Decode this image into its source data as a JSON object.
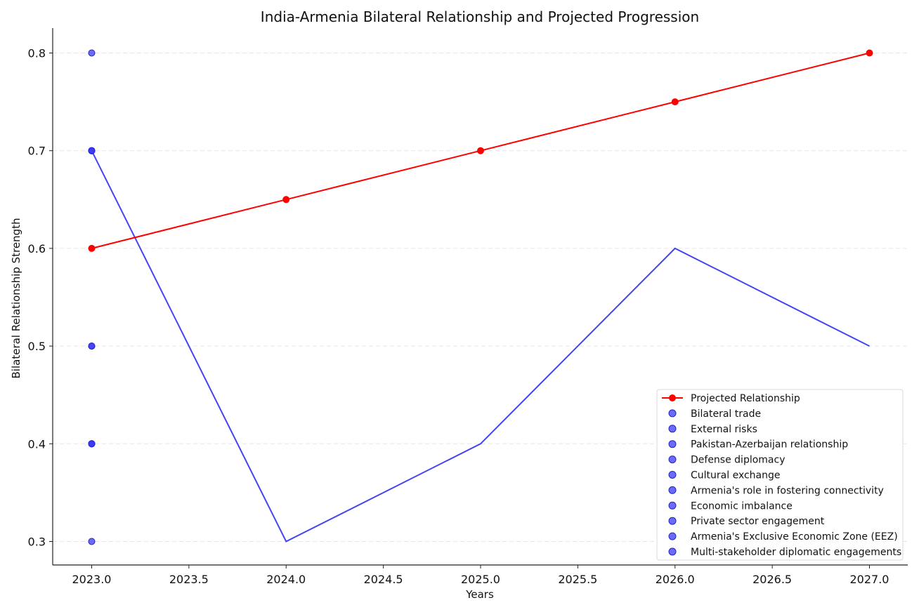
{
  "chart_data": {
    "type": "line",
    "title": "India-Armenia Bilateral Relationship and Projected Progression",
    "xlabel": "Years",
    "ylabel": "Bilateral Relationship Strength",
    "xlim": [
      2022.8,
      2027.2
    ],
    "ylim": [
      0.276,
      0.825
    ],
    "x_ticks": [
      "2023.0",
      "2023.5",
      "2024.0",
      "2024.5",
      "2025.0",
      "2025.5",
      "2026.0",
      "2026.5",
      "2027.0"
    ],
    "y_ticks": [
      "0.3",
      "0.4",
      "0.5",
      "0.6",
      "0.7",
      "0.8"
    ],
    "grid": "horizontal-dashed",
    "legend_position": "lower-right",
    "projected": {
      "name": "Projected Relationship",
      "color": "#ff0000",
      "x": [
        2023,
        2024,
        2025,
        2026,
        2027
      ],
      "y": [
        0.6,
        0.65,
        0.7,
        0.75,
        0.8
      ]
    },
    "unlabeled_line": {
      "color": "#3a3af5",
      "x": [
        2023,
        2024,
        2025,
        2026,
        2027
      ],
      "y": [
        0.7,
        0.3,
        0.4,
        0.6,
        0.5
      ]
    },
    "factor_points": {
      "color": "#3a3af5",
      "names": [
        "Bilateral trade",
        "External risks",
        "Pakistan-Azerbaijan relationship",
        "Defense diplomacy",
        "Cultural exchange",
        "Armenia's role in fostering connectivity",
        "Economic imbalance",
        "Private sector engagement",
        "Armenia's Exclusive Economic Zone (EEZ)",
        "Multi-stakeholder diplomatic engagements"
      ],
      "x": [
        2023,
        2023,
        2023,
        2023,
        2023,
        2023,
        2023,
        2023,
        2023,
        2023
      ],
      "y": [
        0.7,
        0.4,
        0.3,
        0.5,
        0.8,
        0.7,
        0.4,
        0.5,
        0.7,
        0.4
      ]
    }
  }
}
